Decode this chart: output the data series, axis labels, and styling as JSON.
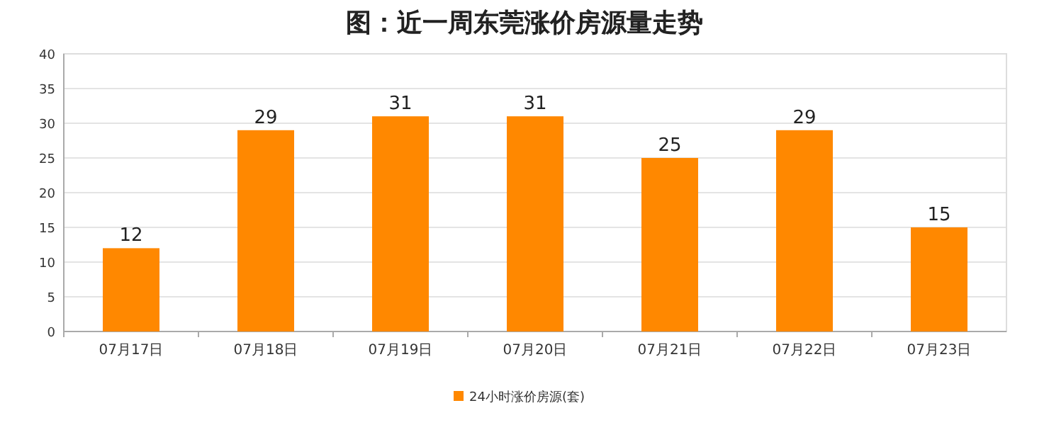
{
  "chart_data": {
    "type": "bar",
    "title": "图：近一周东莞涨价房源量走势",
    "categories": [
      "07月17日",
      "07月18日",
      "07月19日",
      "07月20日",
      "07月21日",
      "07月22日",
      "07月23日"
    ],
    "series": [
      {
        "name": "24小时涨价房源(套)",
        "color": "#ff8800",
        "values": [
          12,
          29,
          31,
          31,
          25,
          29,
          15
        ]
      }
    ],
    "ylim": [
      0,
      40
    ],
    "yticks": [
      0,
      5,
      10,
      15,
      20,
      25,
      30,
      35,
      40
    ],
    "grid": "y",
    "data_labels": true,
    "legend": "bottom"
  }
}
